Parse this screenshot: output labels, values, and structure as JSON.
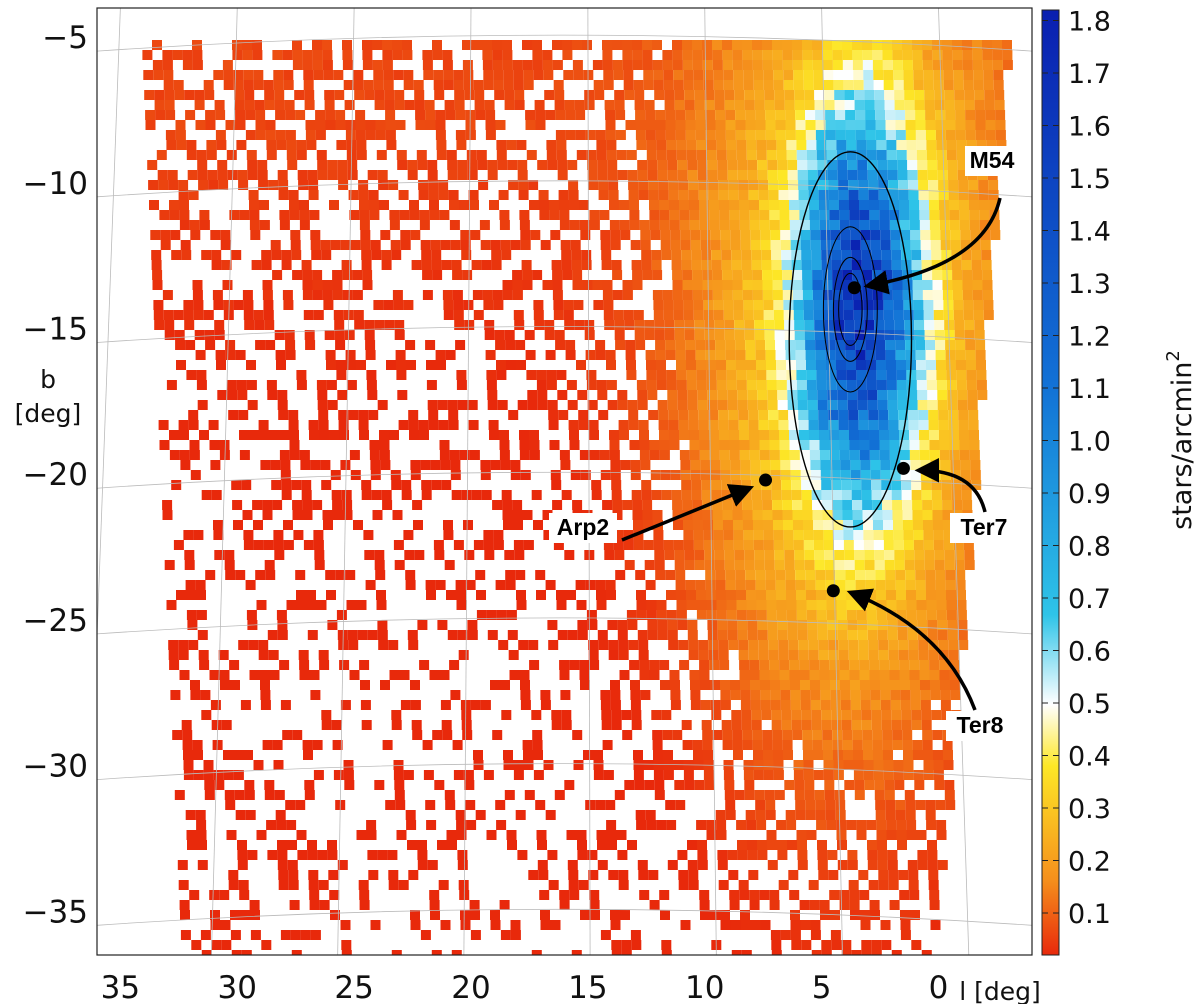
{
  "chart_data": {
    "type": "heatmap",
    "title": "",
    "xlabel": "l [deg]",
    "ylabel_line1": "b",
    "ylabel_line2": "[deg]",
    "xlim": [
      36,
      -4
    ],
    "ylim": [
      -36.5,
      -4
    ],
    "x_ticks": [
      "35",
      "30",
      "25",
      "20",
      "15",
      "10",
      "5",
      "0"
    ],
    "x_tick_values": [
      35,
      30,
      25,
      20,
      15,
      10,
      5,
      0
    ],
    "y_ticks": [
      "−5",
      "−10",
      "−15",
      "−20",
      "−25",
      "−30",
      "−35"
    ],
    "y_tick_values": [
      -5,
      -10,
      -15,
      -20,
      -25,
      -30,
      -35
    ],
    "colorbar": {
      "label": "stars/arcmin",
      "label_sup": "2",
      "range": [
        0.02,
        1.82
      ],
      "ticks": [
        "0.1",
        "0.2",
        "0.3",
        "0.4",
        "0.5",
        "0.6",
        "0.7",
        "0.8",
        "0.9",
        "1.0",
        "1.1",
        "1.2",
        "1.3",
        "1.4",
        "1.5",
        "1.6",
        "1.7",
        "1.8"
      ],
      "tick_values": [
        0.1,
        0.2,
        0.3,
        0.4,
        0.5,
        0.6,
        0.7,
        0.8,
        0.9,
        1.0,
        1.1,
        1.2,
        1.3,
        1.4,
        1.5,
        1.6,
        1.7,
        1.8
      ],
      "colors": [
        "#e8290b",
        "#f5901c",
        "#fde726",
        "#ffffff",
        "#2ec4e8",
        "#1272d6",
        "#0a1fb0"
      ]
    },
    "density_model": {
      "core": {
        "l": 3.6,
        "b": -14.0,
        "sigma_l": 1.6,
        "sigma_b": 4.2,
        "peak": 1.3
      },
      "halo": {
        "l": 4.0,
        "b": -16.0,
        "sigma_l": 4.5,
        "sigma_b": 9.0,
        "peak": 0.35
      }
    },
    "contour_levels": [
      0.5,
      0.9,
      1.15,
      1.25
    ],
    "annotations": [
      {
        "name": "M54",
        "l": 3.6,
        "b": -13.6
      },
      {
        "name": "Arp2",
        "l": 7.4,
        "b": -20.2
      },
      {
        "name": "Ter7",
        "l": 1.5,
        "b": -19.8
      },
      {
        "name": "Ter8",
        "l": 4.5,
        "b": -24.0
      }
    ],
    "grid": true
  }
}
